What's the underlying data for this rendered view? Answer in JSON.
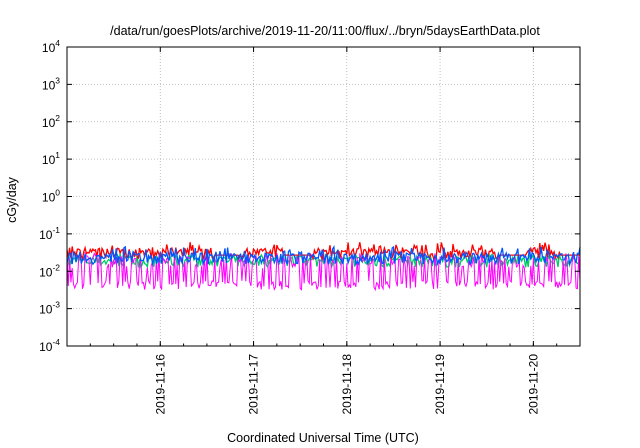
{
  "chart_data": {
    "type": "line",
    "title": "/data/run/goesPlots/archive/2019-11-20/11:00/flux/../bryn/5daysEarthData.plot",
    "xlabel": "Coordinated Universal Time (UTC)",
    "ylabel": "cGy/day",
    "y_scale": "log",
    "ylim": [
      0.0001,
      10000
    ],
    "y_ticks": [
      {
        "base": "10",
        "exp": "-4",
        "value": 0.0001
      },
      {
        "base": "10",
        "exp": "-3",
        "value": 0.001
      },
      {
        "base": "10",
        "exp": "-2",
        "value": 0.01
      },
      {
        "base": "10",
        "exp": "-1",
        "value": 0.1
      },
      {
        "base": "10",
        "exp": "0",
        "value": 1
      },
      {
        "base": "10",
        "exp": "1",
        "value": 10
      },
      {
        "base": "10",
        "exp": "2",
        "value": 100
      },
      {
        "base": "10",
        "exp": "3",
        "value": 1000
      },
      {
        "base": "10",
        "exp": "4",
        "value": 10000
      }
    ],
    "xlim": [
      "2019-11-15T00:00",
      "2019-11-20T12:00"
    ],
    "x_ticks": [
      "2019-11-16",
      "2019-11-17",
      "2019-11-18",
      "2019-11-19",
      "2019-11-20"
    ],
    "grid": true,
    "legend": "none",
    "series": [
      {
        "color": "#ff0000",
        "typical": 0.03,
        "peak": 0.06,
        "gaps": [
          [
            "11-16T14:00",
            "11-16T20:00"
          ],
          [
            "11-17T08:00",
            "11-17T15:00"
          ],
          [
            "11-19T15:00",
            "11-19T22:00"
          ],
          [
            "11-20T07:00",
            "11-20T12:00"
          ]
        ]
      },
      {
        "color": "#00cc66",
        "typical": 0.018,
        "peak": 0.03,
        "gaps": []
      },
      {
        "color": "#0055ff",
        "typical": 0.022,
        "peak": 0.045,
        "gaps": []
      },
      {
        "color": "#ff00ff",
        "typical_low": 0.004,
        "typical_high": 0.02,
        "peak": 0.03,
        "gaps": []
      }
    ]
  }
}
